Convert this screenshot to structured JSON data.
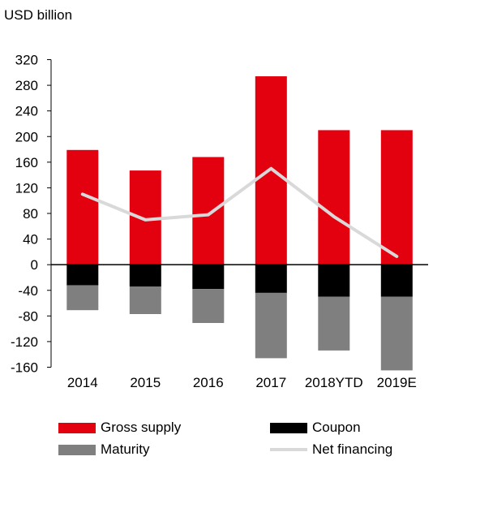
{
  "chart_data": {
    "type": "bar",
    "ylabel": "USD billion",
    "categories": [
      "2014",
      "2015",
      "2016",
      "2017",
      "2018YTD",
      "2019E"
    ],
    "ylim": [
      -160,
      320
    ],
    "yticks": [
      320,
      280,
      240,
      200,
      160,
      120,
      80,
      40,
      0,
      -40,
      -80,
      -120,
      -160
    ],
    "stacked": true,
    "grid": false,
    "legend_position": "bottom",
    "series": [
      {
        "name": "Gross supply",
        "type": "bar",
        "color": "#e3000f",
        "values": [
          179,
          147,
          168,
          294,
          210,
          210
        ]
      },
      {
        "name": "Coupon",
        "type": "bar",
        "color": "#000000",
        "values": [
          -32,
          -34,
          -38,
          -44,
          -50,
          -50
        ]
      },
      {
        "name": "Maturity",
        "type": "bar",
        "color": "#7f7f7f",
        "values": [
          -39,
          -43,
          -53,
          -102,
          -84,
          -115
        ]
      },
      {
        "name": "Net financing",
        "type": "line",
        "color": "#d9d9d9",
        "values": [
          110,
          70,
          78,
          150,
          75,
          13
        ]
      }
    ]
  }
}
